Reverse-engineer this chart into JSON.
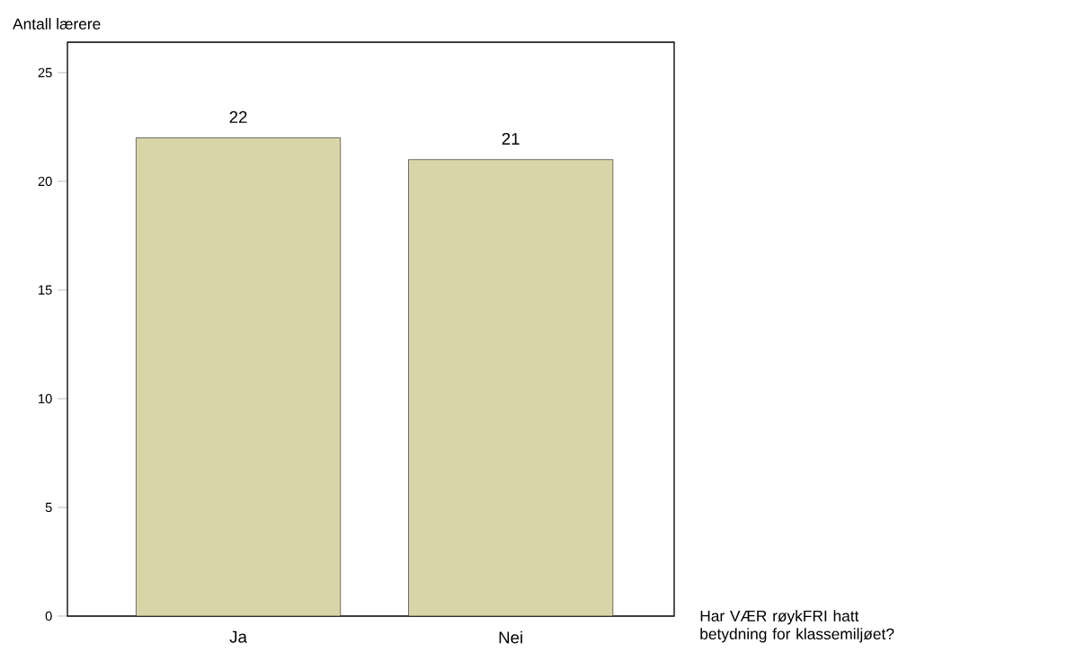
{
  "chart_data": {
    "type": "bar",
    "ylabel": "Antall lærere",
    "xlabel": "Har VÆR røykFRI hatt betydning for  klassemiljøet?",
    "categories": [
      "Ja",
      "Nei"
    ],
    "values": [
      22,
      21
    ],
    "value_labels": [
      "22",
      "21"
    ],
    "color": "#d9d5a8",
    "ylim": [
      0,
      26.4
    ],
    "yticks": [
      0,
      5,
      10,
      15,
      20,
      25
    ],
    "grid": false
  }
}
